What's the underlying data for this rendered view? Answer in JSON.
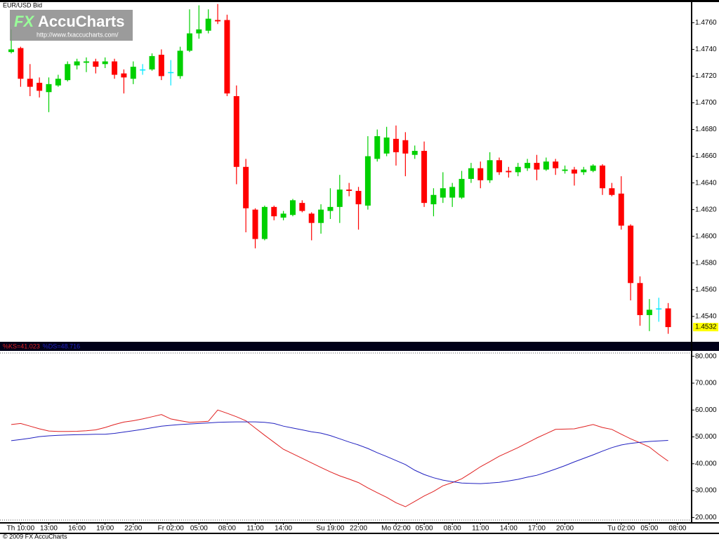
{
  "logo": {
    "brand": "FX",
    "name": "AccuCharts",
    "url": "http://www.fxaccucharts.com/"
  },
  "footer": "© 2009 FX AccuCharts",
  "chart_data": [
    {
      "type": "candlestick",
      "title": "EUR/USD Bid",
      "up_color": "#00d000",
      "down_color": "#ff0000",
      "unchanged_color": "#00e8ff",
      "open": [
        1.4738,
        1.4741,
        1.4718,
        1.4715,
        1.4708,
        1.4713,
        1.4717,
        1.4728,
        1.473,
        1.4731,
        1.4729,
        1.4731,
        1.4722,
        1.4718,
        1.4725,
        1.4725,
        1.4736,
        1.4723,
        1.472,
        1.4739,
        1.4752,
        1.4754,
        1.4762,
        1.4762,
        1.4705,
        1.4652,
        1.462,
        1.4598,
        1.4622,
        1.4614,
        1.4616,
        1.4625,
        1.4617,
        1.461,
        1.4619,
        1.4622,
        1.4635,
        1.4634,
        1.4623,
        1.4658,
        1.4662,
        1.4673,
        1.4672,
        1.4661,
        1.4664,
        1.4624,
        1.4629,
        1.4629,
        1.4629,
        1.4643,
        1.4651,
        1.4642,
        1.4657,
        1.4649,
        1.4648,
        1.4651,
        1.4655,
        1.465,
        1.4656,
        1.4649,
        1.465,
        1.4648,
        1.4649,
        1.4653,
        1.4636,
        1.4632,
        1.4608,
        1.4565,
        1.4541,
        1.4546,
        1.4546
      ],
      "high": [
        1.4755,
        1.4742,
        1.4729,
        1.4719,
        1.4719,
        1.4721,
        1.4731,
        1.4733,
        1.4734,
        1.4733,
        1.4734,
        1.4733,
        1.4725,
        1.4731,
        1.4729,
        1.4737,
        1.474,
        1.4732,
        1.4742,
        1.477,
        1.4773,
        1.477,
        1.4774,
        1.4766,
        1.4713,
        1.4658,
        1.4621,
        1.4623,
        1.4623,
        1.4619,
        1.4628,
        1.4627,
        1.4618,
        1.4624,
        1.4636,
        1.4646,
        1.464,
        1.4637,
        1.4675,
        1.468,
        1.4682,
        1.4683,
        1.4678,
        1.4668,
        1.4671,
        1.4636,
        1.4648,
        1.464,
        1.4649,
        1.4655,
        1.4656,
        1.4663,
        1.4659,
        1.4652,
        1.4655,
        1.4658,
        1.4661,
        1.4659,
        1.4658,
        1.4653,
        1.4652,
        1.4652,
        1.4654,
        1.4654,
        1.464,
        1.4645,
        1.4609,
        1.457,
        1.4553,
        1.4554,
        1.455
      ],
      "low": [
        1.4737,
        1.4712,
        1.4705,
        1.4704,
        1.4693,
        1.4712,
        1.4716,
        1.4725,
        1.4723,
        1.4722,
        1.4726,
        1.4718,
        1.4707,
        1.4714,
        1.4721,
        1.4724,
        1.4717,
        1.4713,
        1.4718,
        1.4738,
        1.4748,
        1.4752,
        1.4759,
        1.4705,
        1.4639,
        1.4603,
        1.4591,
        1.4597,
        1.4612,
        1.4612,
        1.4615,
        1.4618,
        1.4597,
        1.4602,
        1.4613,
        1.461,
        1.463,
        1.4605,
        1.462,
        1.4656,
        1.466,
        1.4653,
        1.4645,
        1.4658,
        1.4622,
        1.4615,
        1.4625,
        1.4622,
        1.4628,
        1.464,
        1.4636,
        1.464,
        1.4646,
        1.4644,
        1.4645,
        1.4649,
        1.4642,
        1.4649,
        1.4646,
        1.4647,
        1.4638,
        1.4646,
        1.4648,
        1.4631,
        1.463,
        1.4605,
        1.4552,
        1.4533,
        1.4529,
        1.4536,
        1.4527
      ],
      "close": [
        1.474,
        1.4718,
        1.4712,
        1.4709,
        1.4714,
        1.4718,
        1.4729,
        1.4731,
        1.4731,
        1.4727,
        1.4731,
        1.4721,
        1.4719,
        1.4727,
        1.4725,
        1.4735,
        1.472,
        1.4723,
        1.4739,
        1.4752,
        1.4755,
        1.4763,
        1.4761,
        1.4707,
        1.4652,
        1.4621,
        1.4598,
        1.4622,
        1.4615,
        1.4617,
        1.4627,
        1.4619,
        1.461,
        1.462,
        1.4622,
        1.4635,
        1.4634,
        1.4624,
        1.466,
        1.4675,
        1.4674,
        1.4663,
        1.4662,
        1.4664,
        1.4625,
        1.4631,
        1.4636,
        1.4637,
        1.4643,
        1.4651,
        1.4642,
        1.4657,
        1.4648,
        1.4648,
        1.4652,
        1.4655,
        1.465,
        1.4656,
        1.4651,
        1.465,
        1.4647,
        1.465,
        1.4653,
        1.4636,
        1.4631,
        1.4608,
        1.4565,
        1.4541,
        1.4545,
        1.4546,
        1.4532
      ],
      "last_price_label": "1.4532",
      "ylim": [
        1.4521,
        1.4777
      ],
      "yticks": [
        {
          "value": 1.454,
          "label": "1.4540"
        },
        {
          "value": 1.456,
          "label": "1.4560"
        },
        {
          "value": 1.458,
          "label": "1.4580"
        },
        {
          "value": 1.46,
          "label": "1.4600"
        },
        {
          "value": 1.462,
          "label": "1.4620"
        },
        {
          "value": 1.464,
          "label": "1.4640"
        },
        {
          "value": 1.466,
          "label": "1.4660"
        },
        {
          "value": 1.468,
          "label": "1.4680"
        },
        {
          "value": 1.47,
          "label": "1.4700"
        },
        {
          "value": 1.472,
          "label": "1.4720"
        },
        {
          "value": 1.474,
          "label": "1.4740"
        },
        {
          "value": 1.476,
          "label": "1.4760"
        }
      ],
      "xlim": [
        -1.2,
        72.5
      ],
      "xticks": [
        {
          "value": 1,
          "label": "Th 10:00"
        },
        {
          "value": 4,
          "label": "13:00"
        },
        {
          "value": 7,
          "label": "16:00"
        },
        {
          "value": 10,
          "label": "19:00"
        },
        {
          "value": 13,
          "label": "22:00"
        },
        {
          "value": 17,
          "label": "Fr 02:00"
        },
        {
          "value": 20,
          "label": "05:00"
        },
        {
          "value": 23,
          "label": "08:00"
        },
        {
          "value": 26,
          "label": "11:00"
        },
        {
          "value": 29,
          "label": "14:00"
        },
        {
          "value": 34,
          "label": "Su 19:00"
        },
        {
          "value": 37,
          "label": "22:00"
        },
        {
          "value": 41,
          "label": "Mo 02:00"
        },
        {
          "value": 44,
          "label": "05:00"
        },
        {
          "value": 47,
          "label": "08:00"
        },
        {
          "value": 50,
          "label": "11:00"
        },
        {
          "value": 53,
          "label": "14:00"
        },
        {
          "value": 56,
          "label": "17:00"
        },
        {
          "value": 59,
          "label": "20:00"
        },
        {
          "value": 65,
          "label": "Tu 02:00"
        },
        {
          "value": 68,
          "label": "05:00"
        },
        {
          "value": 71,
          "label": "08:00"
        }
      ]
    },
    {
      "type": "line",
      "series": [
        {
          "name": "%KS=41.023",
          "color": "#e02020",
          "values": [
            54.6,
            55,
            54,
            53,
            52.2,
            52,
            52,
            52.1,
            52.3,
            52.6,
            53.5,
            54.6,
            55.5,
            56,
            56.7,
            57.5,
            58.3,
            56.7,
            56,
            55.4,
            55.6,
            55.8,
            60,
            58.8,
            57.5,
            56,
            53.3,
            50.6,
            48,
            45.4,
            43.7,
            42,
            40.3,
            38.6,
            37,
            35.5,
            34.3,
            33,
            31,
            29.2,
            27.5,
            25.5,
            24,
            26,
            28,
            29.7,
            31.8,
            33,
            34.4,
            36.6,
            38.9,
            40.8,
            42.8,
            44.4,
            46,
            47.8,
            49.6,
            51.2,
            52.8,
            52.9,
            53,
            53.8,
            54.6,
            53.5,
            52.8,
            51,
            49.3,
            47.8,
            46.2,
            43.5,
            41.0
          ]
        },
        {
          "name": "%DS=48.716",
          "color": "#2020c0",
          "values": [
            48.6,
            49,
            49.5,
            50.1,
            50.4,
            50.6,
            50.7,
            50.8,
            50.9,
            51,
            51,
            51.3,
            51.8,
            52.3,
            52.8,
            53.4,
            54,
            54.3,
            54.6,
            54.8,
            55,
            55.2,
            55.4,
            55.5,
            55.6,
            55.6,
            55.6,
            55.4,
            55,
            54,
            53.3,
            52.6,
            51.9,
            51.4,
            50.5,
            49.3,
            48.1,
            47,
            45.7,
            44.1,
            42.7,
            41.2,
            39.7,
            37.6,
            36,
            34.8,
            33.9,
            33.3,
            32.8,
            32.7,
            32.6,
            32.8,
            33.1,
            33.6,
            34.2,
            35,
            35.7,
            36.8,
            38,
            39.3,
            40.7,
            42,
            43.3,
            44.7,
            46,
            47,
            47.6,
            48,
            48.3,
            48.5,
            48.7
          ]
        }
      ],
      "ylim": [
        18,
        82
      ],
      "yticks": [
        {
          "value": 20,
          "label": "20.000"
        },
        {
          "value": 30,
          "label": "30.000"
        },
        {
          "value": 40,
          "label": "40.000"
        },
        {
          "value": 50,
          "label": "50.000"
        },
        {
          "value": 60,
          "label": "60.000"
        },
        {
          "value": 70,
          "label": "70.000"
        },
        {
          "value": 80,
          "label": "80.000"
        }
      ]
    }
  ]
}
